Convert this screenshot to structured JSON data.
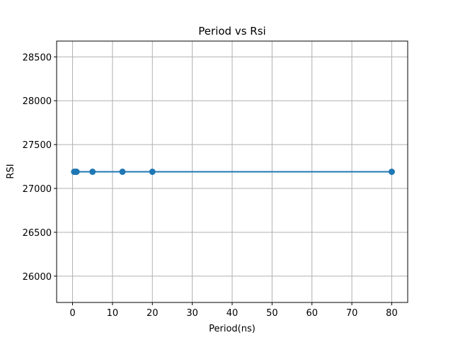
{
  "chart_data": {
    "type": "line",
    "title": "Period vs Rsi",
    "xlabel": "Period(ns)",
    "ylabel": "RSI",
    "xlim": [
      -4,
      84
    ],
    "ylim": [
      25700,
      28680
    ],
    "grid": true,
    "marker": "circle",
    "color": "#1f77b4",
    "x_ticks": [
      0,
      10,
      20,
      30,
      40,
      50,
      60,
      70,
      80
    ],
    "y_ticks": [
      26000,
      26500,
      27000,
      27500,
      28000,
      28500
    ],
    "series": [
      {
        "x": [
          0.4,
          0.8,
          1,
          5,
          12.5,
          20,
          80
        ],
        "y": [
          27190,
          27190,
          27190,
          27190,
          27190,
          27190,
          27190
        ]
      }
    ]
  }
}
